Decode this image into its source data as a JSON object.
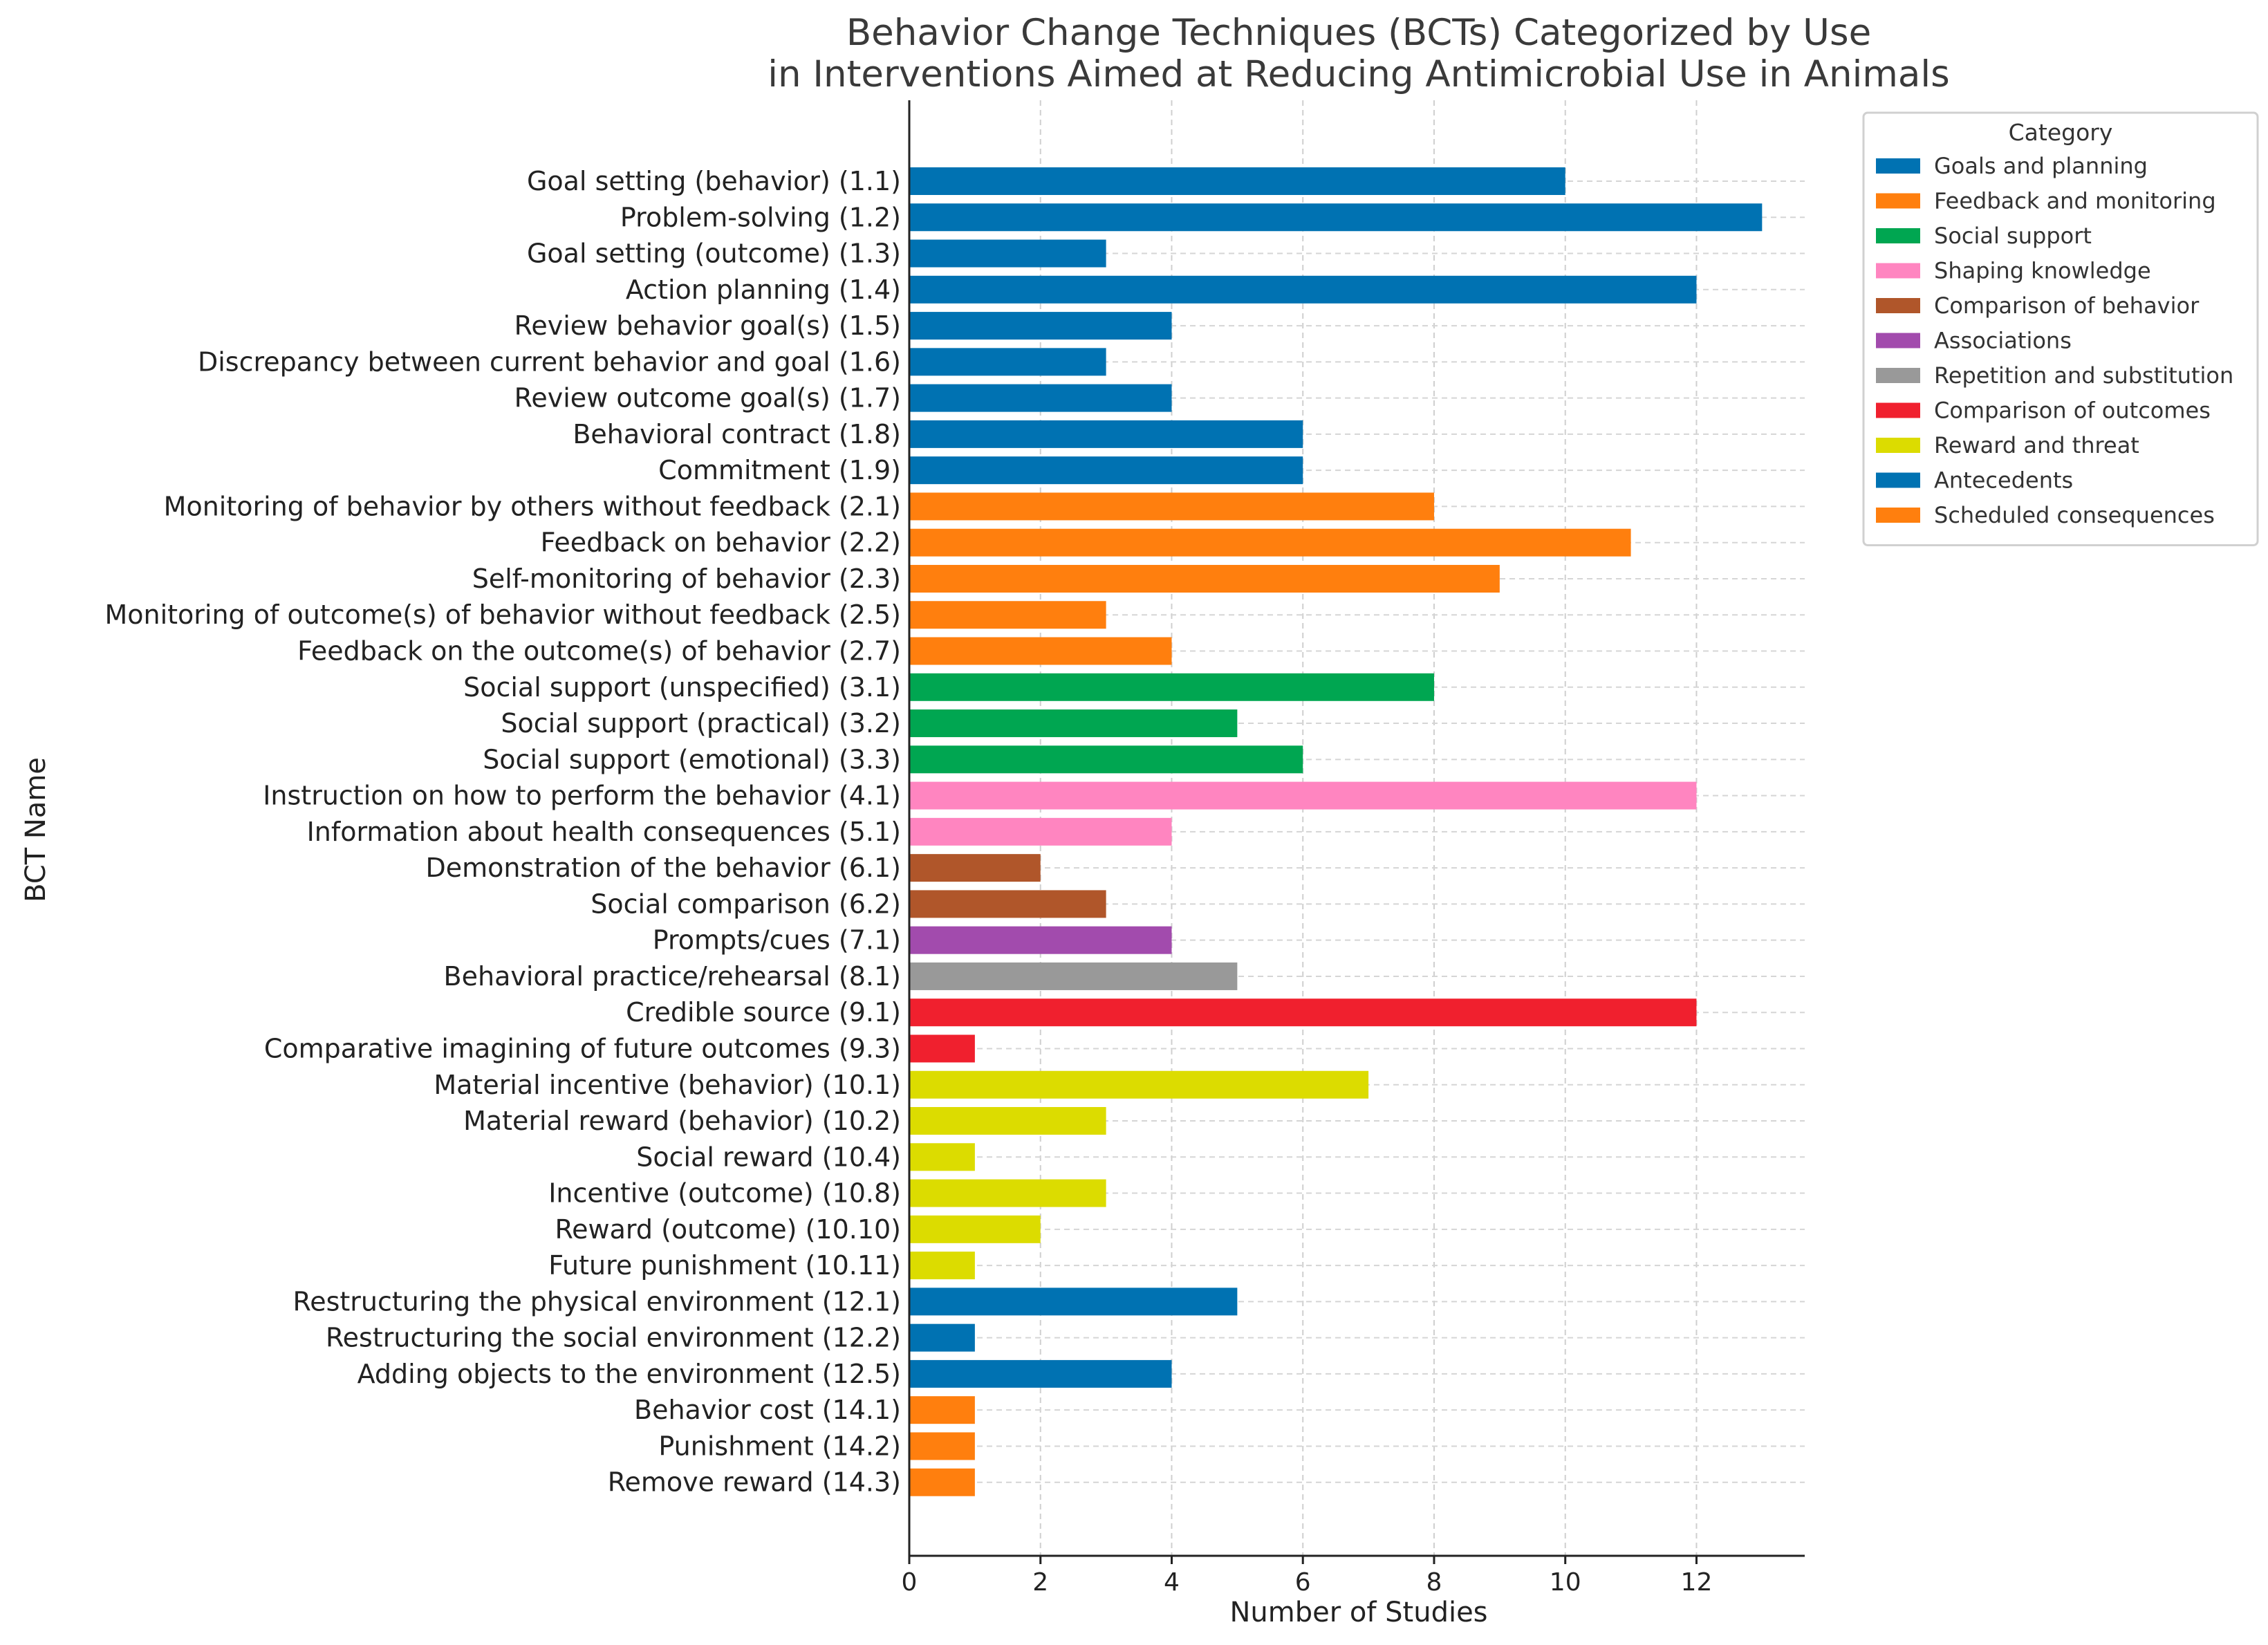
{
  "chart_data": {
    "type": "bar",
    "orientation": "horizontal",
    "title_lines": [
      "Behavior Change Techniques (BCTs) Categorized by Use",
      "in Interventions Aimed at Reducing Antimicrobial Use in Animals"
    ],
    "xlabel": "Number of Studies",
    "ylabel": "BCT Name",
    "xlim": [
      0,
      13.65
    ],
    "xticks": [
      "0",
      "2",
      "4",
      "6",
      "8",
      "10",
      "12"
    ],
    "grid": true,
    "legend_title": "Category",
    "legend_position": "upper-right, outside plot",
    "categories": [
      {
        "name": "Goals and planning",
        "color": "#0072B2"
      },
      {
        "name": "Feedback and monitoring",
        "color": "#FF7F0E"
      },
      {
        "name": "Social support",
        "color": "#00A651"
      },
      {
        "name": "Shaping knowledge",
        "color": "#FF85C0"
      },
      {
        "name": "Comparison of behavior",
        "color": "#B0562A"
      },
      {
        "name": "Associations",
        "color": "#A24BAD"
      },
      {
        "name": "Repetition and substitution",
        "color": "#999999"
      },
      {
        "name": "Comparison of outcomes",
        "color": "#F0202E"
      },
      {
        "name": "Reward and threat",
        "color": "#DCDC00"
      },
      {
        "name": "Antecedents",
        "color": "#0072B2"
      },
      {
        "name": "Scheduled consequences",
        "color": "#FF7F0E"
      }
    ],
    "bars": [
      {
        "label": "Goal setting (behavior) (1.1)",
        "value": 10,
        "category": 0
      },
      {
        "label": "Problem-solving (1.2)",
        "value": 13,
        "category": 0
      },
      {
        "label": "Goal setting (outcome) (1.3)",
        "value": 3,
        "category": 0
      },
      {
        "label": "Action planning (1.4)",
        "value": 12,
        "category": 0
      },
      {
        "label": "Review behavior goal(s) (1.5)",
        "value": 4,
        "category": 0
      },
      {
        "label": "Discrepancy between current behavior and goal (1.6)",
        "value": 3,
        "category": 0
      },
      {
        "label": "Review outcome goal(s) (1.7)",
        "value": 4,
        "category": 0
      },
      {
        "label": "Behavioral contract (1.8)",
        "value": 6,
        "category": 0
      },
      {
        "label": "Commitment (1.9)",
        "value": 6,
        "category": 0
      },
      {
        "label": "Monitoring of behavior by others without feedback (2.1)",
        "value": 8,
        "category": 1
      },
      {
        "label": "Feedback on behavior (2.2)",
        "value": 11,
        "category": 1
      },
      {
        "label": "Self-monitoring of behavior (2.3)",
        "value": 9,
        "category": 1
      },
      {
        "label": "Monitoring of outcome(s) of behavior without feedback (2.5)",
        "value": 3,
        "category": 1
      },
      {
        "label": "Feedback on the outcome(s) of behavior (2.7)",
        "value": 4,
        "category": 1
      },
      {
        "label": "Social support (unspecified) (3.1)",
        "value": 8,
        "category": 2
      },
      {
        "label": "Social support (practical) (3.2)",
        "value": 5,
        "category": 2
      },
      {
        "label": "Social support (emotional) (3.3)",
        "value": 6,
        "category": 2
      },
      {
        "label": "Instruction on how to perform the behavior (4.1)",
        "value": 12,
        "category": 3
      },
      {
        "label": "Information about health consequences (5.1)",
        "value": 4,
        "category": 3
      },
      {
        "label": "Demonstration of the behavior (6.1)",
        "value": 2,
        "category": 4
      },
      {
        "label": "Social comparison (6.2)",
        "value": 3,
        "category": 4
      },
      {
        "label": "Prompts/cues (7.1)",
        "value": 4,
        "category": 5
      },
      {
        "label": "Behavioral practice/rehearsal (8.1)",
        "value": 5,
        "category": 6
      },
      {
        "label": "Credible source (9.1)",
        "value": 12,
        "category": 7
      },
      {
        "label": "Comparative imagining of future outcomes (9.3)",
        "value": 1,
        "category": 7
      },
      {
        "label": "Material incentive (behavior) (10.1)",
        "value": 7,
        "category": 8
      },
      {
        "label": "Material reward (behavior) (10.2)",
        "value": 3,
        "category": 8
      },
      {
        "label": "Social reward (10.4)",
        "value": 1,
        "category": 8
      },
      {
        "label": "Incentive (outcome) (10.8)",
        "value": 3,
        "category": 8
      },
      {
        "label": "Reward (outcome) (10.10)",
        "value": 2,
        "category": 8
      },
      {
        "label": "Future punishment (10.11)",
        "value": 1,
        "category": 8
      },
      {
        "label": "Restructuring the physical environment (12.1)",
        "value": 5,
        "category": 9
      },
      {
        "label": "Restructuring the social environment (12.2)",
        "value": 1,
        "category": 9
      },
      {
        "label": "Adding objects to the environment (12.5)",
        "value": 4,
        "category": 9
      },
      {
        "label": "Behavior cost (14.1)",
        "value": 1,
        "category": 10
      },
      {
        "label": "Punishment (14.2)",
        "value": 1,
        "category": 10
      },
      {
        "label": "Remove reward (14.3)",
        "value": 1,
        "category": 10
      }
    ]
  }
}
